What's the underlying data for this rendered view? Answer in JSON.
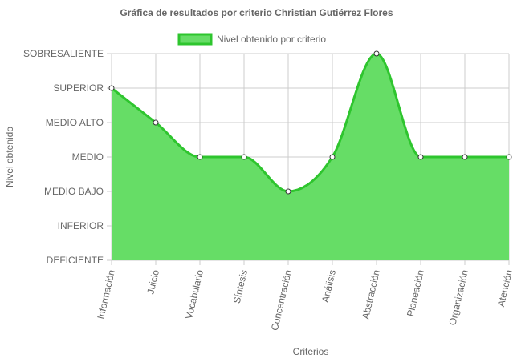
{
  "chart_data": {
    "type": "area",
    "title": "Gráfica de resultados por criterio Christian Gutiérrez Flores",
    "xlabel": "Criterios",
    "ylabel": "Nivel obtenido",
    "y_levels": [
      "DEFICIENTE",
      "INFERIOR",
      "MEDIO BAJO",
      "MEDIO",
      "MEDIO ALTO",
      "SUPERIOR",
      "SOBRESALIENTE"
    ],
    "ylim": [
      0,
      6
    ],
    "categories": [
      "Información",
      "Juicio",
      "Vocabulario",
      "Síntesis",
      "Concentración",
      "Análisis",
      "Abstracción",
      "Planeación",
      "Organización",
      "Atención"
    ],
    "series": [
      {
        "name": "Nivel obtenido por criterio",
        "values": [
          5,
          4,
          3,
          3,
          2,
          3,
          6,
          3,
          3,
          3
        ]
      }
    ],
    "grid": true,
    "legend": "top-center",
    "colors": {
      "line": "#2ec52e",
      "fill": "#66dd66",
      "grid": "#cccccc",
      "point_fill": "#ffffff",
      "point_stroke": "#333333"
    }
  }
}
